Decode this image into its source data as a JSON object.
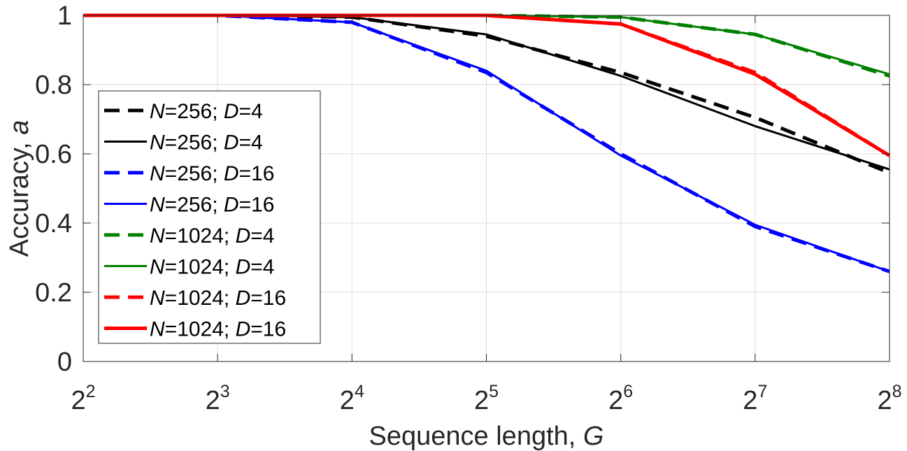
{
  "chart_data": {
    "type": "line",
    "xscale": "log2",
    "x": [
      4,
      8,
      16,
      32,
      64,
      128,
      256
    ],
    "x_tick_labels": [
      {
        "base": "2",
        "exp": "2"
      },
      {
        "base": "2",
        "exp": "3"
      },
      {
        "base": "2",
        "exp": "4"
      },
      {
        "base": "2",
        "exp": "5"
      },
      {
        "base": "2",
        "exp": "6"
      },
      {
        "base": "2",
        "exp": "7"
      },
      {
        "base": "2",
        "exp": "8"
      }
    ],
    "y_ticks": [
      0,
      0.2,
      0.4,
      0.6,
      0.8,
      1
    ],
    "y_tick_labels": [
      "0",
      "0.2",
      "0.4",
      "0.6",
      "0.8",
      "1"
    ],
    "xlim": [
      4,
      256
    ],
    "ylim": [
      0,
      1
    ],
    "grid": true,
    "xlabel": {
      "text": "Sequence length, ",
      "var": "G"
    },
    "ylabel": {
      "text": "Accuracy, ",
      "var": "a"
    },
    "legend_position": "middle-left",
    "series": [
      {
        "name": "N=256; D=4",
        "N": "256",
        "D": "4",
        "color": "#000000",
        "style": "dashed",
        "width": "thick",
        "values": [
          1.0,
          1.0,
          0.995,
          0.94,
          0.835,
          0.705,
          0.545
        ]
      },
      {
        "name": "N=256; D=4",
        "N": "256",
        "D": "4",
        "color": "#000000",
        "style": "solid",
        "width": "thin",
        "values": [
          1.0,
          1.0,
          0.995,
          0.945,
          0.825,
          0.68,
          0.555
        ]
      },
      {
        "name": "N=256; D=16",
        "N": "256",
        "D": "16",
        "color": "#0000ff",
        "style": "dashed",
        "width": "thick",
        "values": [
          1.0,
          1.0,
          0.98,
          0.835,
          0.6,
          0.39,
          0.26
        ]
      },
      {
        "name": "N=256; D=16",
        "N": "256",
        "D": "16",
        "color": "#0000ff",
        "style": "solid",
        "width": "thin",
        "values": [
          1.0,
          1.0,
          0.98,
          0.84,
          0.595,
          0.395,
          0.26
        ]
      },
      {
        "name": "N=1024; D=4",
        "N": "1024",
        "D": "4",
        "color": "#008000",
        "style": "dashed",
        "width": "thick",
        "values": [
          1.0,
          1.0,
          1.0,
          1.0,
          0.995,
          0.945,
          0.825
        ]
      },
      {
        "name": "N=1024; D=4",
        "N": "1024",
        "D": "4",
        "color": "#008000",
        "style": "solid",
        "width": "thin",
        "values": [
          1.0,
          1.0,
          1.0,
          1.0,
          0.995,
          0.945,
          0.83
        ]
      },
      {
        "name": "N=1024; D=16",
        "N": "1024",
        "D": "16",
        "color": "#ff0000",
        "style": "dashed",
        "width": "thick",
        "values": [
          1.0,
          1.0,
          1.0,
          1.0,
          0.975,
          0.835,
          0.595
        ]
      },
      {
        "name": "N=1024; D=16",
        "N": "1024",
        "D": "16",
        "color": "#ff0000",
        "style": "solid",
        "width": "thick",
        "values": [
          1.0,
          1.0,
          1.0,
          1.0,
          0.975,
          0.83,
          0.595
        ]
      }
    ]
  }
}
